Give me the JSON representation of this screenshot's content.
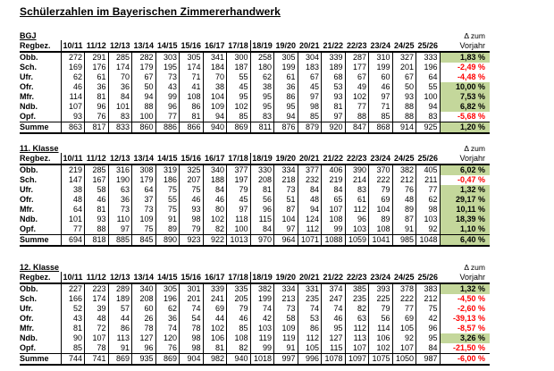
{
  "title": "Schülerzahlen im Bayerischen Zimmererhandwerk",
  "region_header": "Regbez.",
  "delta_header": {
    "line1": "Δ zum",
    "line2": "Vorjahr"
  },
  "years": [
    "10/11",
    "11/12",
    "12/13",
    "13/14",
    "14/15",
    "15/16",
    "16/17",
    "17/18",
    "18/19",
    "19/20",
    "20/21",
    "21/22",
    "22/23",
    "23/24",
    "24/25",
    "25/26"
  ],
  "colors": {
    "positive_bg": "#c4d79b",
    "negative_text": "#ff0000"
  },
  "tables": [
    {
      "label": "BGJ",
      "rows": [
        {
          "label": "Obb.",
          "values": [
            272,
            291,
            285,
            282,
            303,
            305,
            341,
            300,
            258,
            305,
            304,
            339,
            287,
            310,
            327,
            333
          ],
          "delta": "1,83 %",
          "positive": true
        },
        {
          "label": "Sch.",
          "values": [
            169,
            176,
            174,
            179,
            195,
            174,
            184,
            187,
            180,
            199,
            183,
            189,
            177,
            199,
            201,
            196
          ],
          "delta": "-2,49 %",
          "positive": false
        },
        {
          "label": "Ufr.",
          "values": [
            62,
            61,
            70,
            67,
            73,
            71,
            70,
            55,
            62,
            61,
            67,
            68,
            67,
            60,
            67,
            64
          ],
          "delta": "-4,48 %",
          "positive": false
        },
        {
          "label": "Ofr.",
          "values": [
            46,
            36,
            36,
            50,
            43,
            41,
            38,
            45,
            38,
            36,
            45,
            53,
            49,
            46,
            50,
            55
          ],
          "delta": "10,00 %",
          "positive": true
        },
        {
          "label": "Mfr.",
          "values": [
            114,
            81,
            84,
            94,
            99,
            108,
            104,
            95,
            95,
            86,
            97,
            93,
            102,
            97,
            93,
            100
          ],
          "delta": "7,53 %",
          "positive": true
        },
        {
          "label": "Ndb.",
          "values": [
            107,
            96,
            101,
            88,
            96,
            86,
            109,
            102,
            95,
            95,
            98,
            81,
            77,
            71,
            88,
            94
          ],
          "delta": "6,82 %",
          "positive": true
        },
        {
          "label": "Opf.",
          "values": [
            93,
            76,
            83,
            100,
            77,
            81,
            94,
            85,
            83,
            94,
            85,
            97,
            88,
            85,
            88,
            83
          ],
          "delta": "-5,68 %",
          "positive": false
        }
      ],
      "summe": {
        "label": "Summe",
        "values": [
          863,
          817,
          833,
          860,
          886,
          866,
          940,
          869,
          811,
          876,
          879,
          920,
          847,
          868,
          914,
          925
        ],
        "delta": "1,20 %",
        "positive": true
      }
    },
    {
      "label": "11. Klasse",
      "rows": [
        {
          "label": "Obb.",
          "values": [
            219,
            285,
            316,
            308,
            319,
            325,
            340,
            377,
            330,
            334,
            377,
            406,
            390,
            370,
            382,
            405
          ],
          "delta": "6,02 %",
          "positive": true
        },
        {
          "label": "Sch.",
          "values": [
            147,
            167,
            190,
            179,
            186,
            207,
            188,
            197,
            208,
            218,
            232,
            219,
            214,
            222,
            212,
            211
          ],
          "delta": "-0,47 %",
          "positive": false
        },
        {
          "label": "Ufr.",
          "values": [
            38,
            58,
            63,
            64,
            75,
            75,
            84,
            79,
            81,
            73,
            84,
            84,
            83,
            79,
            76,
            77
          ],
          "delta": "1,32 %",
          "positive": true
        },
        {
          "label": "Ofr.",
          "values": [
            48,
            46,
            36,
            37,
            55,
            46,
            46,
            45,
            56,
            51,
            48,
            65,
            61,
            69,
            48,
            62
          ],
          "delta": "29,17 %",
          "positive": true
        },
        {
          "label": "Mfr.",
          "values": [
            64,
            81,
            73,
            73,
            75,
            93,
            80,
            97,
            96,
            87,
            94,
            107,
            112,
            104,
            89,
            98
          ],
          "delta": "10,11 %",
          "positive": true
        },
        {
          "label": "Ndb.",
          "values": [
            101,
            93,
            110,
            109,
            91,
            98,
            102,
            118,
            115,
            104,
            124,
            108,
            96,
            89,
            87,
            103
          ],
          "delta": "18,39 %",
          "positive": true
        },
        {
          "label": "Opf.",
          "values": [
            77,
            88,
            97,
            75,
            89,
            79,
            82,
            100,
            84,
            97,
            112,
            99,
            103,
            108,
            91,
            92
          ],
          "delta": "1,10 %",
          "positive": true
        }
      ],
      "summe": {
        "label": "Summe",
        "values": [
          694,
          818,
          885,
          845,
          890,
          923,
          922,
          1013,
          970,
          964,
          1071,
          1088,
          1059,
          1041,
          985,
          1048
        ],
        "delta": "6,40 %",
        "positive": true
      }
    },
    {
      "label": "12. Klasse",
      "rows": [
        {
          "label": "Obb.",
          "values": [
            227,
            223,
            289,
            340,
            305,
            301,
            339,
            335,
            382,
            334,
            331,
            374,
            385,
            393,
            378,
            383
          ],
          "delta": "1,32 %",
          "positive": true
        },
        {
          "label": "Sch.",
          "values": [
            166,
            174,
            189,
            208,
            196,
            201,
            241,
            205,
            199,
            213,
            235,
            247,
            235,
            225,
            222,
            212
          ],
          "delta": "-4,50 %",
          "positive": false
        },
        {
          "label": "Ufr.",
          "values": [
            52,
            39,
            57,
            60,
            62,
            74,
            69,
            79,
            74,
            73,
            74,
            74,
            82,
            79,
            77,
            75
          ],
          "delta": "-2,60 %",
          "positive": false
        },
        {
          "label": "Ofr.",
          "values": [
            43,
            48,
            44,
            26,
            36,
            54,
            44,
            46,
            42,
            58,
            53,
            46,
            63,
            56,
            69,
            42
          ],
          "delta": "-39,13 %",
          "positive": false
        },
        {
          "label": "Mfr.",
          "values": [
            81,
            72,
            86,
            78,
            74,
            78,
            102,
            85,
            103,
            109,
            86,
            95,
            112,
            114,
            105,
            96
          ],
          "delta": "-8,57 %",
          "positive": false
        },
        {
          "label": "Ndb.",
          "values": [
            90,
            107,
            113,
            127,
            120,
            98,
            106,
            108,
            119,
            119,
            112,
            127,
            113,
            106,
            92,
            95
          ],
          "delta": "3,26 %",
          "positive": true
        },
        {
          "label": "Opf.",
          "values": [
            85,
            78,
            91,
            96,
            76,
            98,
            81,
            82,
            99,
            91,
            105,
            115,
            107,
            102,
            107,
            84
          ],
          "delta": "-21,50 %",
          "positive": false
        }
      ],
      "summe": {
        "label": "Summe",
        "values": [
          744,
          741,
          869,
          935,
          869,
          904,
          982,
          940,
          1018,
          997,
          996,
          1078,
          1097,
          1075,
          1050,
          987
        ],
        "delta": "-6,00 %",
        "positive": false
      }
    }
  ]
}
